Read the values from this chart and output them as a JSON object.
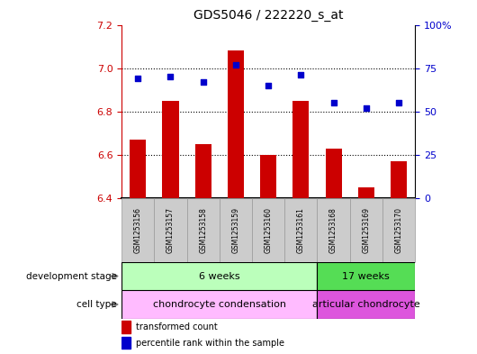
{
  "title": "GDS5046 / 222220_s_at",
  "samples": [
    "GSM1253156",
    "GSM1253157",
    "GSM1253158",
    "GSM1253159",
    "GSM1253160",
    "GSM1253161",
    "GSM1253168",
    "GSM1253169",
    "GSM1253170"
  ],
  "bar_values": [
    6.67,
    6.85,
    6.65,
    7.08,
    6.6,
    6.85,
    6.63,
    6.45,
    6.57
  ],
  "percentile_values": [
    69,
    70,
    67,
    77,
    65,
    71,
    55,
    52,
    55
  ],
  "ylim_left": [
    6.4,
    7.2
  ],
  "ylim_right": [
    0,
    100
  ],
  "yticks_left": [
    6.4,
    6.6,
    6.8,
    7.0,
    7.2
  ],
  "yticks_right": [
    0,
    25,
    50,
    75,
    100
  ],
  "bar_color": "#cc0000",
  "dot_color": "#0000cc",
  "bar_width": 0.5,
  "development_stages": [
    {
      "label": "6 weeks",
      "start": 0,
      "end": 5,
      "color": "#bbffbb"
    },
    {
      "label": "17 weeks",
      "start": 6,
      "end": 8,
      "color": "#55dd55"
    }
  ],
  "cell_types": [
    {
      "label": "chondrocyte condensation",
      "start": 0,
      "end": 5,
      "color": "#ffbbff"
    },
    {
      "label": "articular chondrocyte",
      "start": 6,
      "end": 8,
      "color": "#dd55dd"
    }
  ],
  "dev_stage_label": "development stage",
  "cell_type_label": "cell type",
  "legend_bar_label": "transformed count",
  "legend_dot_label": "percentile rank within the sample",
  "background_color": "#ffffff",
  "sample_bg_color": "#cccccc",
  "ytick_left_color": "#cc0000",
  "ytick_right_color": "#0000cc"
}
